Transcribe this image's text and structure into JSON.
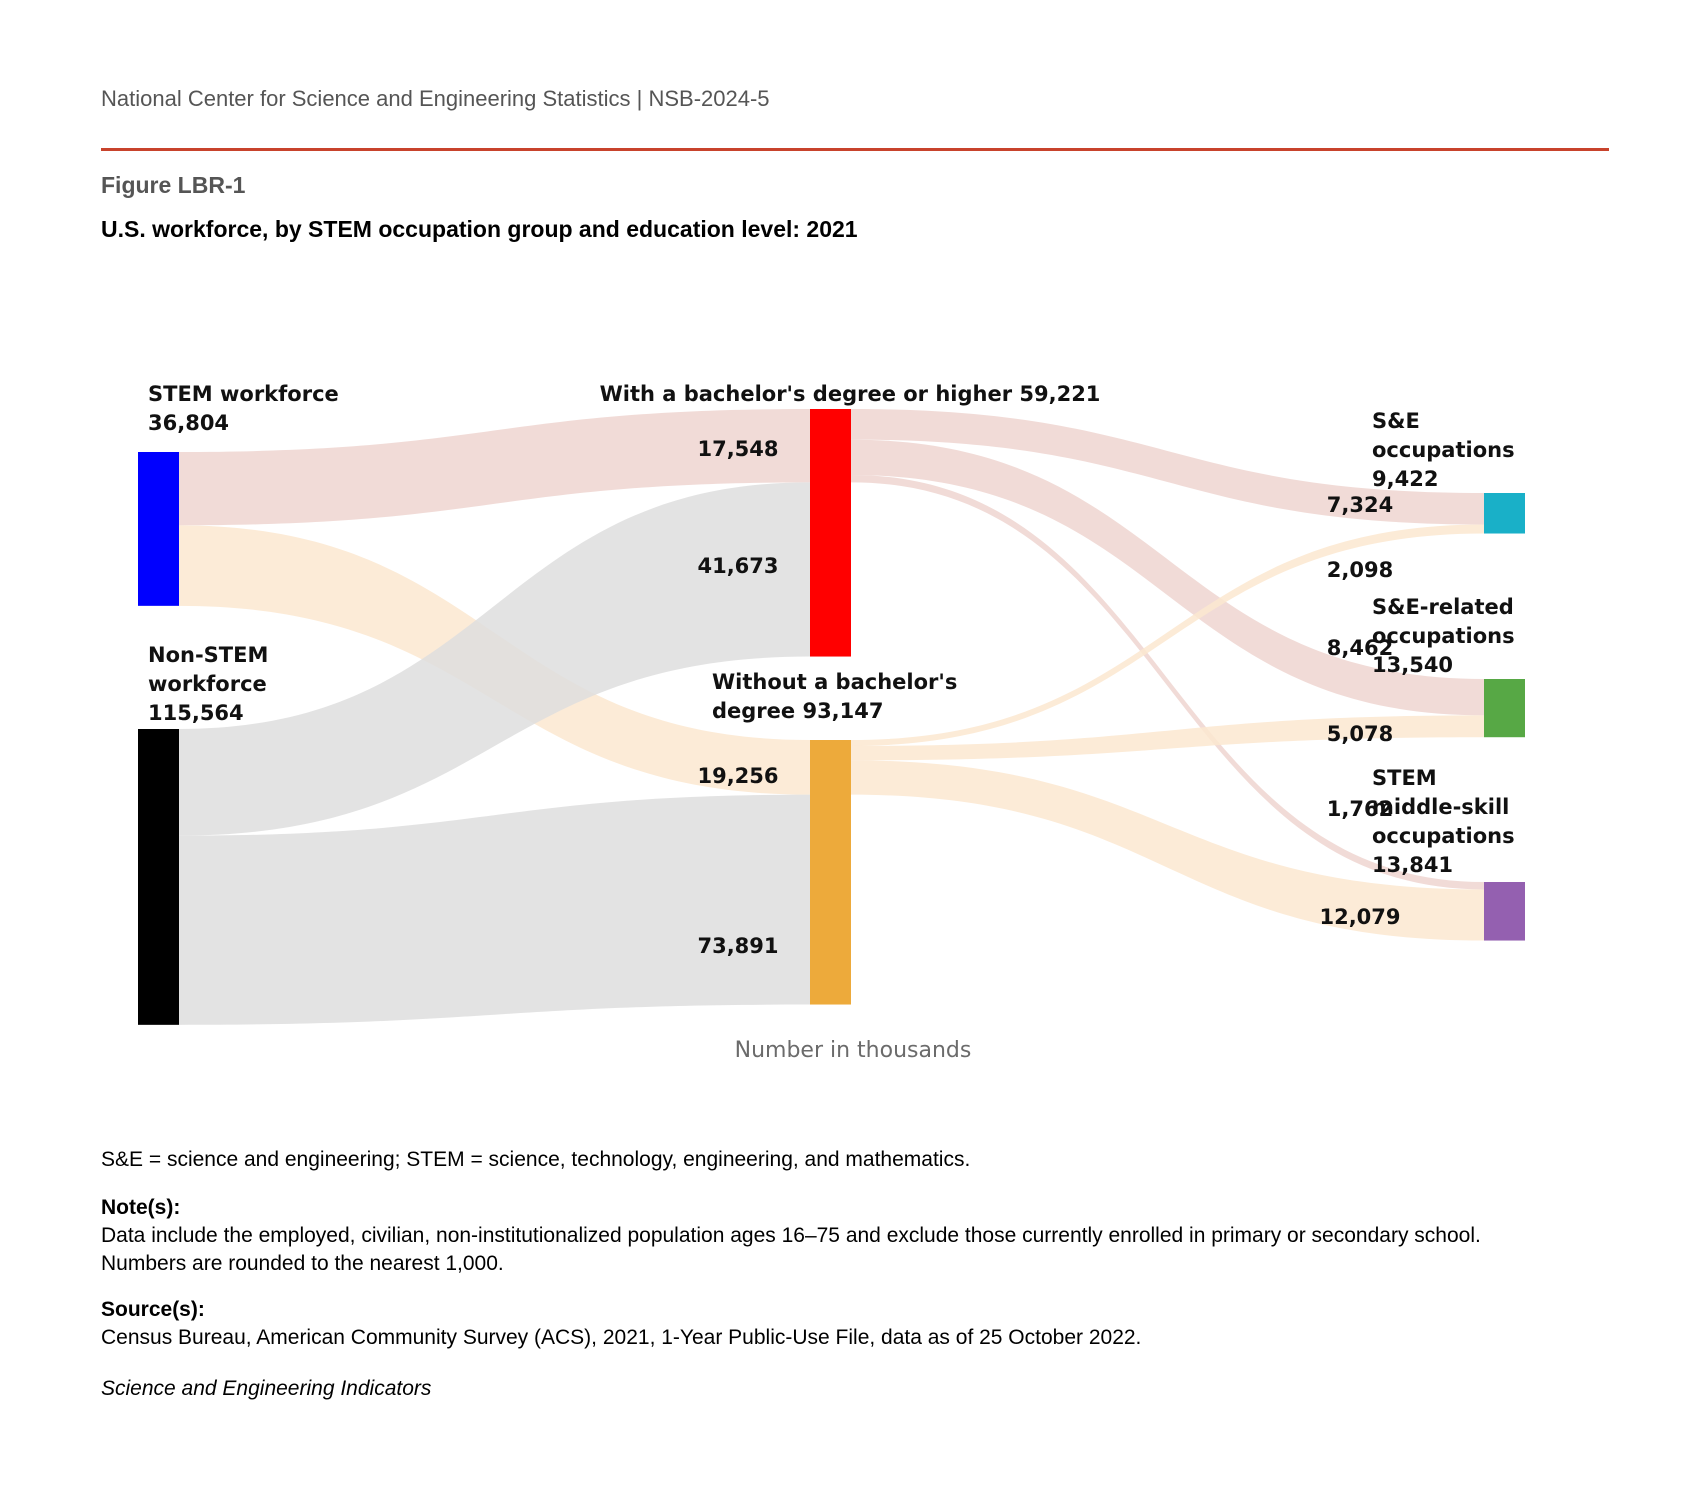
{
  "header": {
    "org": "National Center for Science and Engineering Statistics  |  NSB-2024-5",
    "figure_label": "Figure LBR-1",
    "title": "U.S. workforce, by STEM occupation group and education level: 2021"
  },
  "chart_data": {
    "type": "sankey",
    "axis_label": "Number in thousands",
    "nodes": [
      {
        "id": "stem",
        "label": [
          "STEM workforce",
          "36,804"
        ],
        "value": 36804,
        "color": "#0000ff"
      },
      {
        "id": "nonstem",
        "label": [
          "Non-STEM",
          "workforce",
          "115,564"
        ],
        "value": 115564,
        "color": "#000000"
      },
      {
        "id": "bach",
        "label": [
          "With a bachelor's degree or higher 59,221"
        ],
        "value": 59221,
        "color": "#ff0000"
      },
      {
        "id": "nobach",
        "label": [
          "Without a bachelor's",
          "degree 93,147"
        ],
        "value": 93147,
        "color": "#edaa3b"
      },
      {
        "id": "se",
        "label": [
          "S&E",
          "occupations",
          "9,422"
        ],
        "value": 9422,
        "color": "#19b0c8"
      },
      {
        "id": "serel",
        "label": [
          "S&E-related",
          "occupations",
          "13,540"
        ],
        "value": 13540,
        "color": "#57a845"
      },
      {
        "id": "midskill",
        "label": [
          "STEM",
          "middle-skill",
          "occupations",
          "13,841"
        ],
        "value": 13841,
        "color": "#9460b0"
      }
    ],
    "links": [
      {
        "source": "stem",
        "target": "bach",
        "value": 17548,
        "label": "17,548"
      },
      {
        "source": "stem",
        "target": "nobach",
        "value": 19256,
        "label": "19,256"
      },
      {
        "source": "nonstem",
        "target": "bach",
        "value": 41673,
        "label": "41,673"
      },
      {
        "source": "nonstem",
        "target": "nobach",
        "value": 73891,
        "label": "73,891"
      },
      {
        "source": "bach",
        "target": "se",
        "value": 7324,
        "label": "7,324"
      },
      {
        "source": "bach",
        "target": "serel",
        "value": 8462,
        "label": "8,462"
      },
      {
        "source": "bach",
        "target": "midskill",
        "value": 1762,
        "label": "1,762"
      },
      {
        "source": "nobach",
        "target": "se",
        "value": 2098,
        "label": "2,098"
      },
      {
        "source": "nobach",
        "target": "serel",
        "value": 5078,
        "label": "5,078"
      },
      {
        "source": "nobach",
        "target": "midskill",
        "value": 12079,
        "label": "12,079"
      }
    ],
    "link_colors": {
      "stem": "#efd5d0",
      "nonstem": "#dedede"
    }
  },
  "footer": {
    "abbrev": "S&E = science and engineering; STEM = science, technology, engineering, and mathematics.",
    "notes_heading": "Note(s):",
    "notes": "Data include the employed, civilian, non-institutionalized population ages 16–75 and exclude those currently enrolled in primary or secondary school. Numbers are rounded to the nearest 1,000.",
    "source_heading": "Source(s):",
    "source": "Census Bureau, American Community Survey (ACS), 2021, 1-Year Public-Use File, data as of 25 October 2022.",
    "publication": "Science and Engineering Indicators"
  }
}
